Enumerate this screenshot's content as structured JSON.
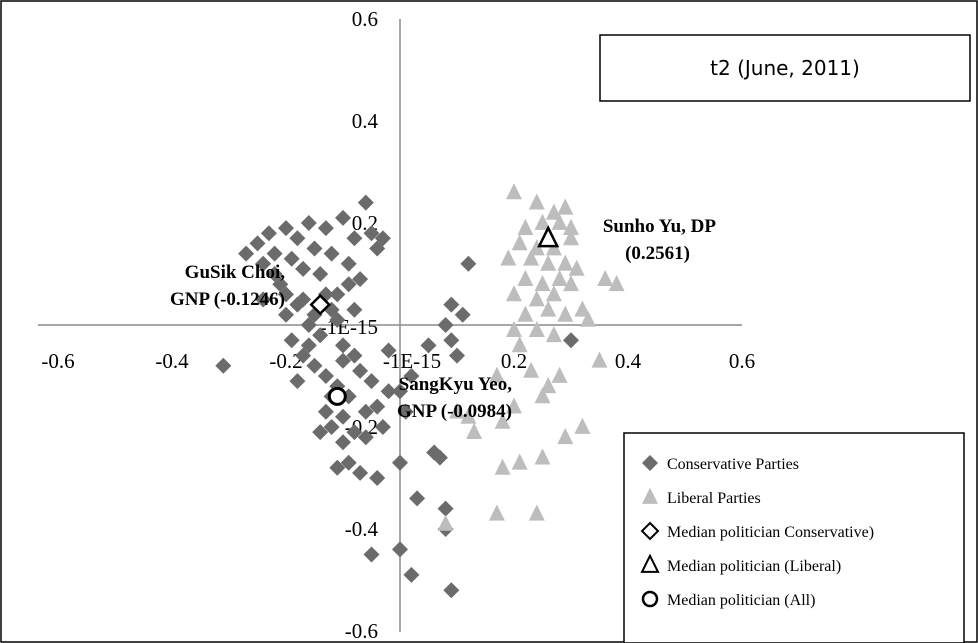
{
  "chart_data": {
    "type": "scatter",
    "title": "t2 (June, 2011)",
    "xlim": [
      -0.6,
      0.6
    ],
    "ylim": [
      -0.6,
      0.6
    ],
    "x_ticks": [
      "-0.6",
      "-0.4",
      "-0.2",
      "-1E-15",
      "0.2",
      "0.4",
      "0.6"
    ],
    "y_ticks": [
      "0.6",
      "0.4",
      "0.2",
      "-1E-15",
      "-0.2",
      "-0.4",
      "-0.6"
    ],
    "grid": false,
    "legend_position": "bottom-right",
    "colors": {
      "conservative": "#6b6b6b",
      "liberal": "#bdbdbd",
      "median": "#000000"
    },
    "series": [
      {
        "name": "Conservative Parties",
        "marker": "diamond",
        "points": [
          [
            -0.31,
            -0.08
          ],
          [
            -0.27,
            0.14
          ],
          [
            -0.25,
            0.16
          ],
          [
            -0.24,
            0.12
          ],
          [
            -0.23,
            0.18
          ],
          [
            -0.22,
            0.14
          ],
          [
            -0.21,
            0.08
          ],
          [
            -0.2,
            0.19
          ],
          [
            -0.19,
            0.13
          ],
          [
            -0.18,
            0.17
          ],
          [
            -0.17,
            0.05
          ],
          [
            -0.16,
            0.2
          ],
          [
            -0.15,
            0.15
          ],
          [
            -0.14,
            0.1
          ],
          [
            -0.13,
            0.19
          ],
          [
            -0.12,
            0.14
          ],
          [
            -0.11,
            0.06
          ],
          [
            -0.1,
            0.21
          ],
          [
            -0.09,
            0.12
          ],
          [
            -0.08,
            0.17
          ],
          [
            -0.07,
            0.09
          ],
          [
            -0.06,
            0.24
          ],
          [
            -0.05,
            0.18
          ],
          [
            -0.04,
            0.15
          ],
          [
            -0.03,
            0.17
          ],
          [
            -0.2,
            0.02
          ],
          [
            -0.18,
            0.04
          ],
          [
            -0.16,
            0.0
          ],
          [
            -0.14,
            -0.02
          ],
          [
            -0.12,
            0.03
          ],
          [
            -0.1,
            -0.04
          ],
          [
            -0.08,
            -0.06
          ],
          [
            -0.19,
            -0.03
          ],
          [
            -0.17,
            -0.06
          ],
          [
            -0.15,
            -0.08
          ],
          [
            -0.13,
            -0.1
          ],
          [
            -0.11,
            -0.12
          ],
          [
            -0.09,
            -0.14
          ],
          [
            -0.07,
            -0.09
          ],
          [
            -0.05,
            -0.11
          ],
          [
            -0.04,
            -0.16
          ],
          [
            -0.13,
            -0.17
          ],
          [
            -0.12,
            -0.2
          ],
          [
            -0.1,
            -0.23
          ],
          [
            -0.09,
            -0.27
          ],
          [
            -0.08,
            -0.21
          ],
          [
            -0.07,
            -0.29
          ],
          [
            -0.14,
            -0.21
          ],
          [
            -0.11,
            -0.28
          ],
          [
            -0.1,
            -0.18
          ],
          [
            -0.06,
            -0.22
          ],
          [
            -0.04,
            -0.3
          ],
          [
            -0.05,
            -0.45
          ],
          [
            -0.02,
            -0.05
          ],
          [
            0.0,
            -0.13
          ],
          [
            0.01,
            -0.17
          ],
          [
            0.0,
            -0.27
          ],
          [
            0.0,
            -0.44
          ],
          [
            0.02,
            -0.49
          ],
          [
            0.03,
            -0.34
          ],
          [
            0.05,
            -0.04
          ],
          [
            0.06,
            -0.25
          ],
          [
            0.07,
            -0.26
          ],
          [
            0.08,
            -0.36
          ],
          [
            0.08,
            -0.4
          ],
          [
            0.09,
            -0.52
          ],
          [
            0.09,
            -0.03
          ],
          [
            0.12,
            0.12
          ],
          [
            0.1,
            -0.06
          ],
          [
            0.11,
            0.02
          ],
          [
            0.09,
            0.04
          ],
          [
            0.08,
            0.0
          ],
          [
            0.3,
            -0.03
          ],
          [
            -0.2,
            0.06
          ],
          [
            -0.22,
            0.1
          ],
          [
            -0.24,
            0.05
          ],
          [
            -0.17,
            0.11
          ],
          [
            -0.15,
            0.02
          ],
          [
            -0.13,
            0.06
          ],
          [
            -0.11,
            0.01
          ],
          [
            -0.09,
            0.08
          ],
          [
            -0.08,
            0.03
          ],
          [
            -0.16,
            -0.04
          ],
          [
            -0.18,
            -0.11
          ],
          [
            -0.12,
            -0.14
          ],
          [
            -0.1,
            -0.07
          ],
          [
            -0.06,
            -0.17
          ],
          [
            -0.03,
            -0.2
          ],
          [
            -0.02,
            -0.13
          ],
          [
            0.02,
            -0.1
          ]
        ]
      },
      {
        "name": "Liberal Parties",
        "marker": "triangle",
        "points": [
          [
            0.2,
            0.26
          ],
          [
            0.24,
            0.24
          ],
          [
            0.27,
            0.22
          ],
          [
            0.29,
            0.23
          ],
          [
            0.22,
            0.19
          ],
          [
            0.25,
            0.2
          ],
          [
            0.28,
            0.2
          ],
          [
            0.3,
            0.19
          ],
          [
            0.21,
            0.16
          ],
          [
            0.24,
            0.15
          ],
          [
            0.27,
            0.15
          ],
          [
            0.3,
            0.17
          ],
          [
            0.19,
            0.13
          ],
          [
            0.23,
            0.13
          ],
          [
            0.26,
            0.12
          ],
          [
            0.29,
            0.12
          ],
          [
            0.31,
            0.11
          ],
          [
            0.22,
            0.09
          ],
          [
            0.25,
            0.08
          ],
          [
            0.28,
            0.09
          ],
          [
            0.3,
            0.08
          ],
          [
            0.36,
            0.09
          ],
          [
            0.38,
            0.08
          ],
          [
            0.2,
            0.06
          ],
          [
            0.24,
            0.05
          ],
          [
            0.27,
            0.06
          ],
          [
            0.22,
            0.02
          ],
          [
            0.26,
            0.03
          ],
          [
            0.29,
            0.02
          ],
          [
            0.33,
            0.01
          ],
          [
            0.32,
            0.03
          ],
          [
            0.2,
            -0.01
          ],
          [
            0.24,
            -0.01
          ],
          [
            0.27,
            -0.02
          ],
          [
            0.21,
            -0.04
          ],
          [
            0.35,
            -0.07
          ],
          [
            0.17,
            -0.1
          ],
          [
            0.23,
            -0.09
          ],
          [
            0.26,
            -0.12
          ],
          [
            0.28,
            -0.1
          ],
          [
            0.25,
            -0.14
          ],
          [
            0.2,
            -0.16
          ],
          [
            0.18,
            -0.19
          ],
          [
            0.1,
            -0.17
          ],
          [
            0.32,
            -0.2
          ],
          [
            0.29,
            -0.22
          ],
          [
            0.25,
            -0.26
          ],
          [
            0.21,
            -0.27
          ],
          [
            0.18,
            -0.28
          ],
          [
            0.17,
            -0.37
          ],
          [
            0.24,
            -0.37
          ],
          [
            0.08,
            -0.39
          ],
          [
            0.13,
            -0.21
          ],
          [
            0.12,
            -0.18
          ]
        ]
      }
    ],
    "median_points": [
      {
        "name": "Median politician Conservative)",
        "marker": "diamond",
        "x": -0.14,
        "y": 0.04
      },
      {
        "name": "Median politician (Liberal)",
        "marker": "triangle",
        "x": 0.26,
        "y": 0.17
      },
      {
        "name": "Median politician (All)",
        "marker": "circle",
        "x": -0.11,
        "y": -0.14
      }
    ],
    "annotations": [
      {
        "id": "choi",
        "lines": [
          "GuSik Choi,",
          "GNP (-0.1246)"
        ]
      },
      {
        "id": "yu",
        "lines": [
          "Sunho Yu, DP",
          "(0.2561)"
        ]
      },
      {
        "id": "yeo",
        "lines": [
          "SangKyu Yeo,",
          "GNP (-0.0984)"
        ]
      }
    ],
    "legend": [
      {
        "label": "Conservative Parties",
        "marker": "diamond-filled-dark"
      },
      {
        "label": "Liberal Parties",
        "marker": "triangle-filled-light"
      },
      {
        "label": "Median politician Conservative)",
        "marker": "diamond-open"
      },
      {
        "label": "Median politician (Liberal)",
        "marker": "triangle-open"
      },
      {
        "label": "Median politician (All)",
        "marker": "circle-open"
      }
    ]
  }
}
